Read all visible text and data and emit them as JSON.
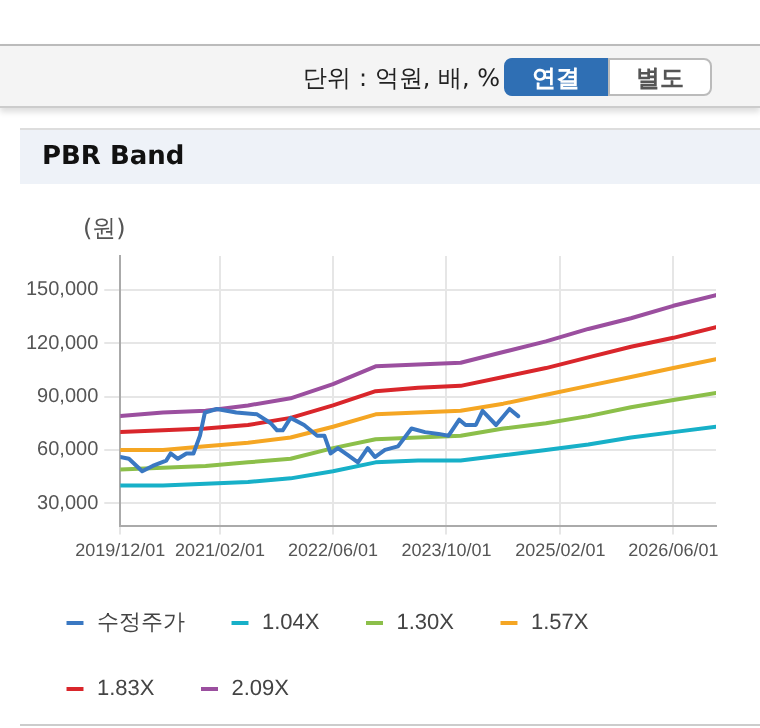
{
  "chart_data": {
    "type": "line",
    "title": "PBR Band",
    "ylabel": "(원)",
    "annotations": [
      "단위 : 억원, 배, %",
      "연결",
      "별도"
    ],
    "xlim": [
      "2019-12-01",
      "2026-12-01"
    ],
    "xticks": [
      {
        "value": "2019-12-01",
        "label": "2019/12/01"
      },
      {
        "value": "2021-02-01",
        "label": "2021/02/01"
      },
      {
        "value": "2022-06-01",
        "label": "2022/06/01"
      },
      {
        "value": "2023-10-01",
        "label": "2023/10/01"
      },
      {
        "value": "2025-02-01",
        "label": "2025/02/01"
      },
      {
        "value": "2026-06-01",
        "label": "2026/06/01"
      }
    ],
    "ylim": [
      17000,
      169000
    ],
    "yticks": [
      {
        "value": 30000,
        "label": "30,000"
      },
      {
        "value": 60000,
        "label": "60,000"
      },
      {
        "value": 90000,
        "label": "90,000"
      },
      {
        "value": 120000,
        "label": "120,000"
      },
      {
        "value": 150000,
        "label": "150,000"
      }
    ],
    "x": [
      "2019-12-01",
      "2020-06-01",
      "2020-12-01",
      "2021-06-01",
      "2021-12-01",
      "2022-06-01",
      "2022-12-01",
      "2023-06-01",
      "2023-12-01",
      "2024-06-01",
      "2024-12-01",
      "2025-06-01",
      "2025-12-01",
      "2026-06-01",
      "2026-12-01"
    ],
    "grid": true,
    "legend": "bottom",
    "marker": "none",
    "line_style": "solid",
    "series": [
      {
        "name": "수정주가",
        "color": "#3a78c2",
        "x": [
          "2019-12-01",
          "2020-01-07",
          "2020-03-04",
          "2020-04-18",
          "2020-06-15",
          "2020-07-04",
          "2020-08-04",
          "2020-09-10",
          "2020-10-10",
          "2020-11-07",
          "2020-11-28",
          "2021-01-18",
          "2021-04-12",
          "2021-07-10",
          "2021-09-07",
          "2021-10-04",
          "2021-10-28",
          "2021-12-01",
          "2022-01-28",
          "2022-03-25",
          "2022-04-25",
          "2022-05-22",
          "2022-06-22",
          "2022-08-04",
          "2022-09-16",
          "2022-10-28",
          "2022-11-28",
          "2023-01-10",
          "2023-03-07",
          "2023-05-04",
          "2023-07-01",
          "2023-08-28",
          "2023-10-10",
          "2023-11-25",
          "2023-12-22",
          "2024-02-04",
          "2024-03-04",
          "2024-05-01",
          "2024-06-28",
          "2024-08-04"
        ],
        "values": [
          56000,
          55000,
          48000,
          51000,
          54000,
          58000,
          55000,
          58000,
          58000,
          68000,
          81000,
          83000,
          81000,
          80000,
          75000,
          71000,
          71000,
          78000,
          74000,
          68000,
          68000,
          58000,
          61000,
          57000,
          53000,
          61000,
          56000,
          60000,
          62000,
          72000,
          70000,
          69000,
          68000,
          77000,
          74000,
          74000,
          82000,
          74000,
          83000,
          79000
        ]
      },
      {
        "name": "1.04X",
        "color": "#17b0c8",
        "values": [
          40000,
          40000,
          41000,
          42000,
          44000,
          48000,
          53000,
          54000,
          54000,
          57000,
          60000,
          63000,
          67000,
          70000,
          73000
        ]
      },
      {
        "name": "1.30X",
        "color": "#8cbf4a",
        "values": [
          49000,
          50000,
          51000,
          53000,
          55000,
          61000,
          66000,
          67000,
          68000,
          72000,
          75000,
          79000,
          84000,
          88000,
          92000
        ]
      },
      {
        "name": "1.57X",
        "color": "#f5a623",
        "values": [
          60000,
          60000,
          62000,
          64000,
          67000,
          73000,
          80000,
          81000,
          82000,
          86000,
          91000,
          96000,
          101000,
          106000,
          111000
        ]
      },
      {
        "name": "1.83X",
        "color": "#d9262b",
        "values": [
          70000,
          71000,
          72000,
          74000,
          78000,
          85000,
          93000,
          95000,
          96000,
          101000,
          106000,
          112000,
          118000,
          123000,
          129000
        ]
      },
      {
        "name": "2.09X",
        "color": "#9b4f9f",
        "values": [
          79000,
          81000,
          82000,
          85000,
          89000,
          97000,
          107000,
          108000,
          109000,
          115000,
          121000,
          128000,
          134000,
          141000,
          147000
        ]
      }
    ]
  }
}
